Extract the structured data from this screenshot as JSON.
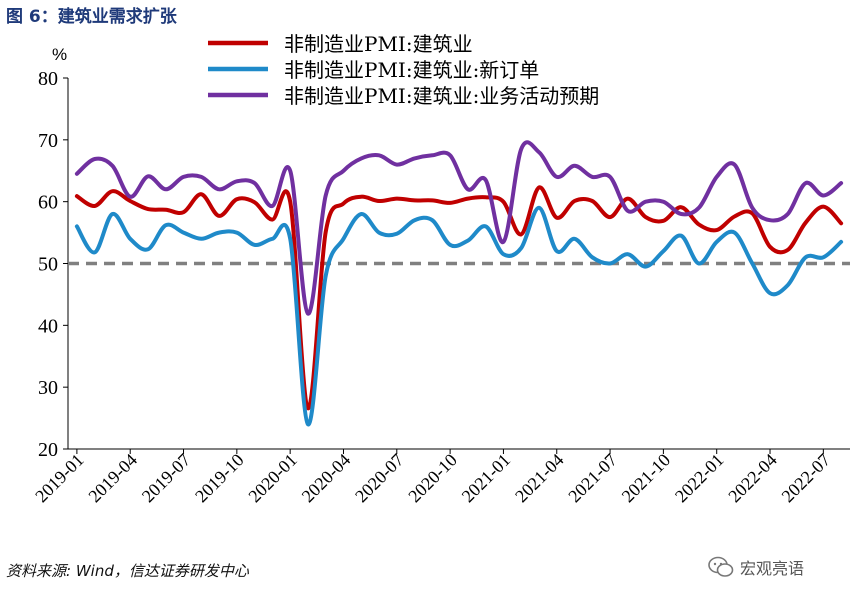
{
  "figure_title": "图 6：建筑业需求扩张",
  "source_note": "资料来源: Wind，信达证券研发中心",
  "watermark": "宏观亮语",
  "colors": {
    "title": "#1f3a7a",
    "construction": "#c00000",
    "new_orders": "#1f8ac9",
    "expectations": "#7030a0",
    "reference": "#808080"
  },
  "chart_data": {
    "type": "line",
    "ylabel": "%",
    "ylim": [
      20,
      80
    ],
    "yticks": [
      20,
      30,
      40,
      50,
      60,
      70,
      80
    ],
    "x": [
      "2019-01",
      "2019-02",
      "2019-03",
      "2019-04",
      "2019-05",
      "2019-06",
      "2019-07",
      "2019-08",
      "2019-09",
      "2019-10",
      "2019-11",
      "2019-12",
      "2020-01",
      "2020-02",
      "2020-03",
      "2020-04",
      "2020-05",
      "2020-06",
      "2020-07",
      "2020-08",
      "2020-09",
      "2020-10",
      "2020-11",
      "2020-12",
      "2021-01",
      "2021-02",
      "2021-03",
      "2021-04",
      "2021-05",
      "2021-06",
      "2021-07",
      "2021-08",
      "2021-09",
      "2021-10",
      "2021-11",
      "2021-12",
      "2022-01",
      "2022-02",
      "2022-03",
      "2022-04",
      "2022-05",
      "2022-06",
      "2022-07",
      "2022-08"
    ],
    "xtick_labels": [
      "2019-01",
      "2019-04",
      "2019-07",
      "2019-10",
      "2020-01",
      "2020-04",
      "2020-07",
      "2020-10",
      "2021-01",
      "2021-04",
      "2021-07",
      "2021-10",
      "2022-01",
      "2022-04",
      "2022-07"
    ],
    "grid": false,
    "legend_position": "top-center",
    "reference_line": {
      "y": 50,
      "style": "dashed"
    },
    "series": [
      {
        "name": "非制造业PMI:建筑业",
        "color": "#c00000",
        "values": [
          60.9,
          59.3,
          61.7,
          60.1,
          58.8,
          58.7,
          58.3,
          61.2,
          57.7,
          60.4,
          59.9,
          57.1,
          60.0,
          26.6,
          55.1,
          59.7,
          60.8,
          60.1,
          60.5,
          60.2,
          60.2,
          59.8,
          60.5,
          60.7,
          60.0,
          54.7,
          62.3,
          57.4,
          60.1,
          60.1,
          57.5,
          60.5,
          57.5,
          56.9,
          59.1,
          56.3,
          55.4,
          57.6,
          58.1,
          52.7,
          52.2,
          56.6,
          59.2,
          56.5
        ]
      },
      {
        "name": "非制造业PMI:建筑业:新订单",
        "color": "#1f8ac9",
        "values": [
          56.0,
          51.8,
          58.0,
          54.0,
          52.3,
          56.2,
          55.0,
          54.0,
          55.0,
          55.0,
          53.0,
          54.0,
          54.0,
          24.0,
          48.0,
          54.0,
          58.0,
          55.0,
          54.8,
          57.0,
          57.0,
          53.0,
          53.7,
          56.0,
          51.5,
          52.5,
          59.0,
          52.0,
          54.0,
          51.0,
          50.0,
          51.5,
          49.5,
          52.0,
          54.5,
          50.0,
          53.5,
          55.0,
          50.0,
          45.2,
          46.5,
          51.0,
          51.0,
          53.5
        ]
      },
      {
        "name": "非制造业PMI:建筑业:业务活动预期",
        "color": "#7030a0",
        "values": [
          64.5,
          66.9,
          65.8,
          60.8,
          64.1,
          62.0,
          64.0,
          64.0,
          62.0,
          63.3,
          63.0,
          59.3,
          65.0,
          41.9,
          61.0,
          65.0,
          67.0,
          67.5,
          66.0,
          67.0,
          67.5,
          67.5,
          62.0,
          63.5,
          53.5,
          68.5,
          68.0,
          64.0,
          65.8,
          64.0,
          64.0,
          58.5,
          60.0,
          60.0,
          58.0,
          59.0,
          64.0,
          66.0,
          59.0,
          57.0,
          58.0,
          63.0,
          61.0,
          63.0
        ]
      }
    ]
  }
}
